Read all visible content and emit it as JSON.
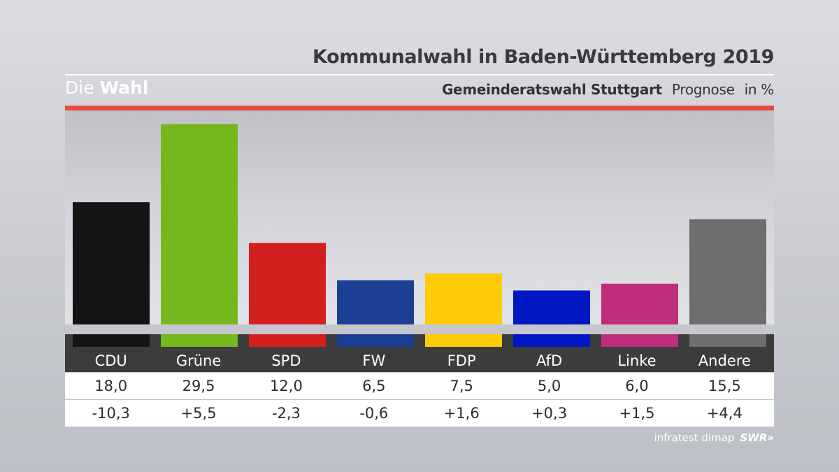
{
  "header": {
    "title": "Kommunalwahl in Baden-Württemberg 2019",
    "brand_light": "Die",
    "brand_bold": "Wahl",
    "subtitle_bold": "Gemeinderatswahl Stuttgart",
    "subtitle_prognose": "Prognose",
    "subtitle_unit": "in %"
  },
  "footer": {
    "source": "infratest dimap",
    "logo": "SWR»"
  },
  "colors": {
    "accent_red": "#e94a3f"
  },
  "chart_data": {
    "type": "bar",
    "categories": [
      "CDU",
      "Grüne",
      "SPD",
      "FW",
      "FDP",
      "AfD",
      "Linke",
      "Andere"
    ],
    "values": [
      18.0,
      29.5,
      12.0,
      6.5,
      7.5,
      5.0,
      6.0,
      15.5
    ],
    "values_text": [
      "18,0",
      "29,5",
      "12,0",
      "6,5",
      "7,5",
      "5,0",
      "6,0",
      "15,5"
    ],
    "changes": [
      -10.3,
      5.5,
      -2.3,
      -0.6,
      1.6,
      0.3,
      1.5,
      4.4
    ],
    "changes_text": [
      "-10,3",
      "+5,5",
      "-2,3",
      "-0,6",
      "+1,6",
      "+0,3",
      "+1,5",
      "+4,4"
    ],
    "colors": [
      "#141414",
      "#75b81e",
      "#d41f1f",
      "#1c3f94",
      "#fecb06",
      "#0018c4",
      "#bf2e7a",
      "#6e6e6e"
    ],
    "ylim": [
      0,
      31.5
    ],
    "grid": false,
    "legend": "none"
  }
}
